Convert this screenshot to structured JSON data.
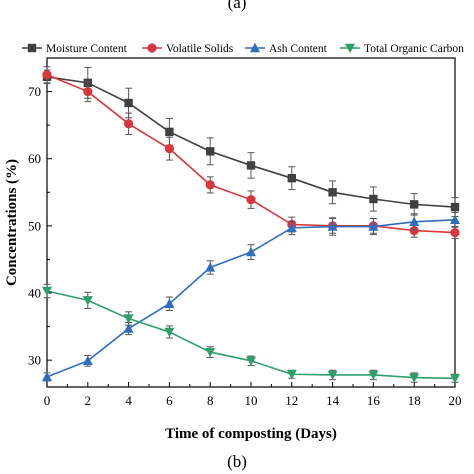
{
  "figure": {
    "label_top": "(a)",
    "label_bottom": "(b)"
  },
  "chart_data": {
    "type": "line",
    "title": "",
    "xlabel": "Time of composting (Days)",
    "ylabel": "Concentrations (%)",
    "xlim": [
      0,
      20
    ],
    "ylim": [
      26,
      75
    ],
    "xticks": [
      0,
      2,
      4,
      6,
      8,
      10,
      12,
      14,
      16,
      18,
      20
    ],
    "yticks": [
      30,
      40,
      50,
      60,
      70
    ],
    "grid": false,
    "legend_position": "top",
    "x": [
      0,
      2,
      4,
      6,
      8,
      10,
      12,
      14,
      16,
      18,
      20
    ],
    "series": [
      {
        "name": "Moisture Content",
        "color": "#404040",
        "marker": "square",
        "values": [
          72.2,
          71.3,
          68.3,
          64.0,
          61.1,
          59.0,
          57.1,
          55.0,
          54.0,
          53.2,
          52.8
        ],
        "errors": [
          1.0,
          2.3,
          2.2,
          2.0,
          2.0,
          1.9,
          1.7,
          1.7,
          1.8,
          1.6,
          1.4
        ]
      },
      {
        "name": "Volatile Solids",
        "color": "#d9363e",
        "marker": "circle",
        "values": [
          72.5,
          70.0,
          65.2,
          61.5,
          56.1,
          53.9,
          50.2,
          50.0,
          50.0,
          49.3,
          49.0
        ],
        "errors": [
          1.2,
          1.5,
          1.6,
          1.7,
          1.2,
          1.3,
          1.1,
          1.1,
          1.1,
          1.0,
          0.9
        ]
      },
      {
        "name": "Ash Content",
        "color": "#2f6dbf",
        "marker": "triangle-up",
        "values": [
          27.5,
          29.9,
          34.7,
          38.4,
          43.8,
          46.1,
          49.7,
          49.9,
          49.9,
          50.6,
          50.9
        ],
        "errors": [
          0.6,
          0.8,
          0.9,
          1.0,
          1.0,
          1.1,
          1.0,
          1.3,
          1.2,
          1.2,
          1.1
        ]
      },
      {
        "name": "Total Organic Carbon",
        "color": "#2e9e6b",
        "marker": "triangle-down",
        "values": [
          40.3,
          38.9,
          36.2,
          34.2,
          31.2,
          29.9,
          27.9,
          27.8,
          27.8,
          27.4,
          27.3
        ],
        "errors": [
          1.0,
          1.2,
          1.0,
          0.9,
          0.8,
          0.7,
          0.6,
          0.7,
          0.7,
          0.7,
          0.6
        ]
      }
    ]
  }
}
